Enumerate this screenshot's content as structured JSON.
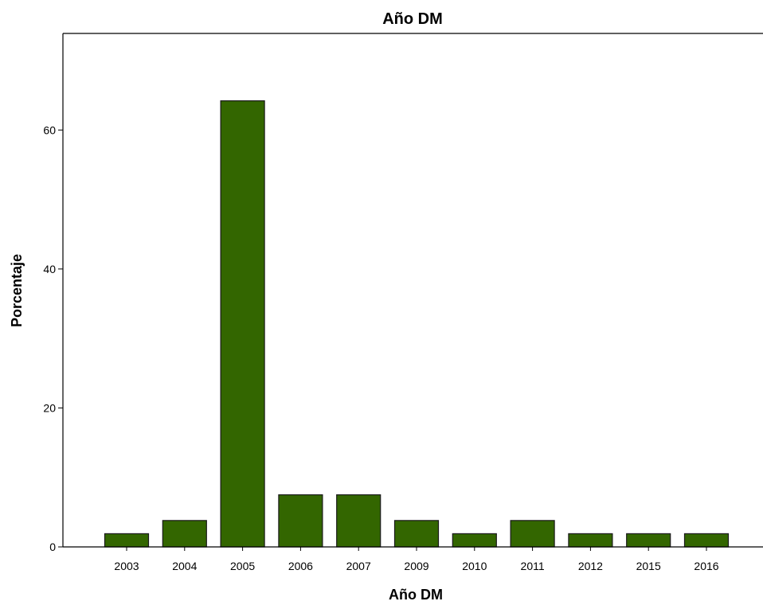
{
  "chart_data": {
    "type": "bar",
    "title": "Año DM",
    "xlabel": "Año DM",
    "ylabel": "Porcentaje",
    "categories": [
      "2003",
      "2004",
      "2005",
      "2006",
      "2007",
      "2009",
      "2010",
      "2011",
      "2012",
      "2015",
      "2016"
    ],
    "values": [
      1.9,
      3.8,
      64.2,
      7.5,
      7.5,
      3.8,
      1.9,
      3.8,
      1.9,
      1.9,
      1.9
    ],
    "ylim": [
      0,
      73.9
    ],
    "yticks": [
      0,
      20,
      40,
      60
    ],
    "grid": false,
    "legend": "none",
    "bar_color": "#336600",
    "bar_edge_color": "#1a1a1a"
  }
}
